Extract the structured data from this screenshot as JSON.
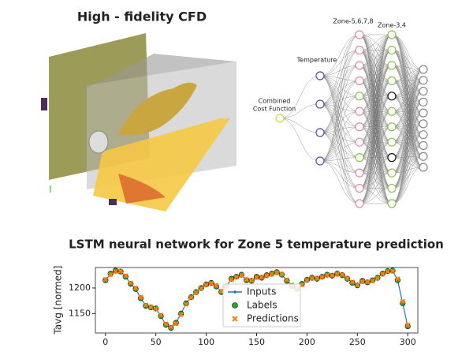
{
  "header": {
    "title": "High - fidelity CFD"
  },
  "diagram": {
    "input_label": [
      "Combined",
      "Cost Function"
    ],
    "layer1_label": "Temperature",
    "layer2_label": "Zone-5,6,7,8",
    "layer3_label": "Zone-3,4"
  },
  "chart_data": {
    "type": "line",
    "title": "LSTM neural network for Zone 5 temperature prediction",
    "y_label": "Tavg [normed]",
    "x": [
      0,
      5,
      10,
      15,
      20,
      25,
      30,
      35,
      40,
      45,
      50,
      55,
      60,
      65,
      70,
      75,
      80,
      85,
      90,
      95,
      100,
      105,
      110,
      115,
      120,
      125,
      130,
      135,
      140,
      145,
      150,
      155,
      160,
      165,
      170,
      175,
      180,
      185,
      190,
      195,
      200,
      205,
      210,
      215,
      220,
      225,
      230,
      235,
      240,
      245,
      250,
      255,
      260,
      265,
      270,
      275,
      280,
      285,
      290,
      295,
      300
    ],
    "series": [
      {
        "name": "Inputs",
        "color": "#1f77b4",
        "values": [
          1215,
          1228,
          1234,
          1232,
          1222,
          1208,
          1198,
          1180,
          1165,
          1162,
          1160,
          1145,
          1128,
          1122,
          1132,
          1150,
          1170,
          1182,
          1192,
          1200,
          1207,
          1210,
          1203,
          1192,
          1203,
          1218,
          1222,
          1226,
          1215,
          1214,
          1222,
          1220,
          1225,
          1228,
          1231,
          1226,
          1214,
          1204,
          1198,
          1208,
          1216,
          1220,
          1218,
          1222,
          1226,
          1224,
          1228,
          1225,
          1218,
          1210,
          1205,
          1214,
          1211,
          1215,
          1220,
          1228,
          1233,
          1234,
          1215,
          1170,
          1125
        ]
      },
      {
        "name": "Labels",
        "color": "#2ca02c",
        "values": [
          1215,
          1228,
          1234,
          1232,
          1222,
          1208,
          1198,
          1180,
          1165,
          1162,
          1160,
          1145,
          1128,
          1122,
          1132,
          1150,
          1170,
          1182,
          1192,
          1200,
          1207,
          1210,
          1203,
          1192,
          1203,
          1218,
          1222,
          1226,
          1215,
          1214,
          1222,
          1220,
          1225,
          1228,
          1231,
          1226,
          1214,
          1204,
          1198,
          1208,
          1216,
          1220,
          1218,
          1222,
          1226,
          1224,
          1228,
          1225,
          1218,
          1210,
          1205,
          1214,
          1211,
          1215,
          1220,
          1228,
          1233,
          1234,
          1215,
          1170,
          1125
        ]
      },
      {
        "name": "Predictions",
        "color": "#ff7f0e",
        "values": [
          1217,
          1226,
          1232,
          1233,
          1224,
          1210,
          1200,
          1182,
          1167,
          1163,
          1159,
          1147,
          1130,
          1124,
          1130,
          1148,
          1168,
          1181,
          1191,
          1199,
          1206,
          1209,
          1205,
          1194,
          1201,
          1216,
          1221,
          1225,
          1217,
          1215,
          1220,
          1221,
          1224,
          1227,
          1230,
          1227,
          1216,
          1206,
          1199,
          1206,
          1215,
          1219,
          1219,
          1221,
          1225,
          1225,
          1227,
          1226,
          1219,
          1212,
          1206,
          1212,
          1212,
          1214,
          1219,
          1227,
          1232,
          1233,
          1218,
          1174,
          1128
        ]
      }
    ],
    "xlim": [
      -10,
      310
    ],
    "ylim": [
      1112,
      1240
    ],
    "xticks": [
      0,
      50,
      100,
      150,
      200,
      250,
      300
    ],
    "yticks": [
      1150,
      1200
    ]
  }
}
